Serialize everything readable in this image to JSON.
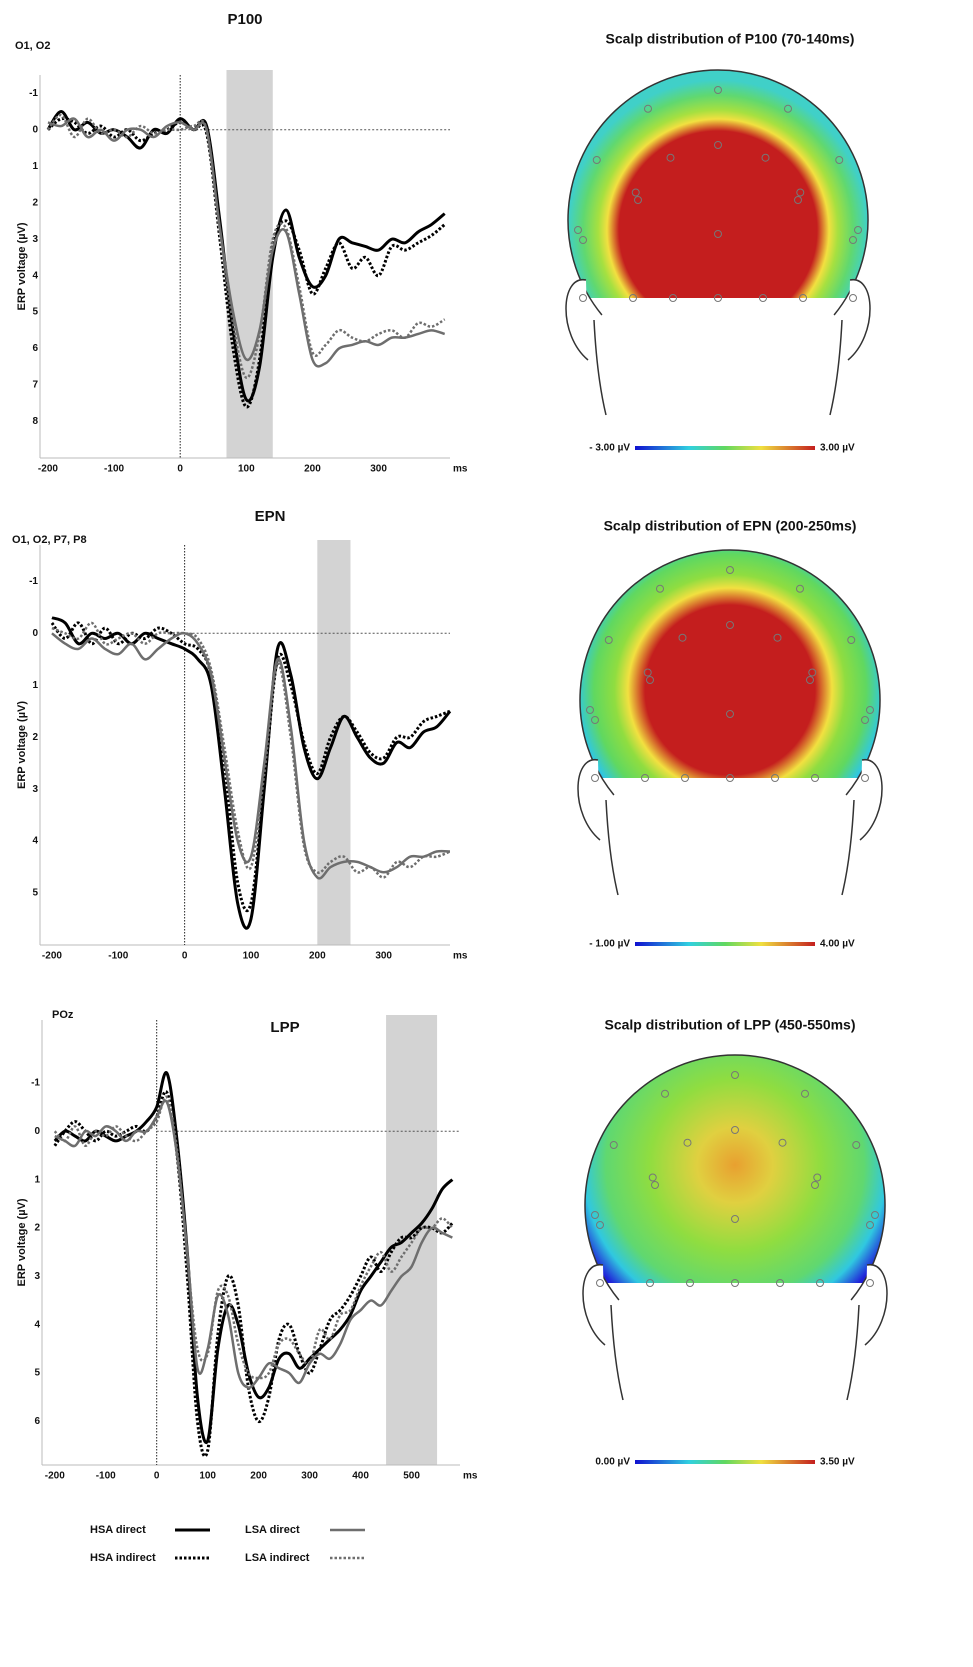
{
  "chart_data": [
    {
      "type": "line",
      "title": "P100",
      "channel": "O1, O2",
      "ylabel": "ERP voltage (µV)",
      "xunit": "ms",
      "invert_y": true,
      "xlim": [
        -212,
        408
      ],
      "xticks": [
        -200,
        -100,
        0,
        100,
        200,
        300
      ],
      "ylim": [
        -1.5,
        9
      ],
      "yticks": [
        -1,
        0,
        1,
        2,
        3,
        4,
        5,
        6,
        7,
        8
      ],
      "window": [
        70,
        140
      ],
      "x": [
        -200,
        -180,
        -160,
        -140,
        -120,
        -100,
        -80,
        -60,
        -40,
        -20,
        0,
        20,
        40,
        60,
        80,
        100,
        120,
        140,
        160,
        180,
        200,
        220,
        240,
        260,
        280,
        300,
        320,
        340,
        360,
        380,
        400
      ],
      "series": [
        {
          "name": "HSA direct",
          "color": "#000000",
          "line_style": "solid",
          "values": [
            0,
            -0.5,
            0,
            -0.2,
            0.1,
            0,
            0.2,
            0.5,
            0,
            0.1,
            -0.3,
            0,
            -0.1,
            2.5,
            5.5,
            7.4,
            6.5,
            3.5,
            2.2,
            3.5,
            4.3,
            4,
            3,
            3.1,
            3.2,
            3.3,
            3,
            3.1,
            2.8,
            2.6,
            2.3
          ]
        },
        {
          "name": "HSA indirect",
          "color": "#000000",
          "line_style": "dotted",
          "values": [
            0,
            -0.3,
            -0.2,
            0.1,
            -0.1,
            0.2,
            0,
            0.3,
            0.1,
            0,
            -0.2,
            0,
            0.1,
            3,
            6,
            7.6,
            6.3,
            3.2,
            2.5,
            3.3,
            4.5,
            3.8,
            3.1,
            3.8,
            3.5,
            4,
            3.2,
            3.3,
            3.1,
            2.9,
            2.6
          ]
        },
        {
          "name": "LSA direct",
          "color": "#6e6e6e",
          "line_style": "solid",
          "values": [
            -0.2,
            -0.1,
            -0.3,
            0.2,
            0,
            0.3,
            0,
            0,
            0.2,
            -0.1,
            -0.2,
            0,
            0,
            2.7,
            5,
            6.3,
            5.5,
            3.3,
            2.8,
            4.5,
            6.3,
            6.4,
            6,
            5.9,
            5.8,
            5.9,
            5.7,
            5.7,
            5.6,
            5.5,
            5.6
          ]
        },
        {
          "name": "LSA indirect",
          "color": "#6e6e6e",
          "line_style": "dotted",
          "values": [
            0,
            -0.4,
            0.2,
            -0.3,
            0.1,
            0,
            0.2,
            -0.1,
            0.1,
            0,
            0,
            -0.1,
            0,
            2.8,
            5.3,
            6.8,
            5.6,
            3,
            2.7,
            4.3,
            6.1,
            5.9,
            5.5,
            5.7,
            5.8,
            5.6,
            5.5,
            5.7,
            5.3,
            5.4,
            5.2
          ]
        }
      ]
    },
    {
      "type": "line",
      "title": "EPN",
      "channel": "O1, O2, P7, P8",
      "ylabel": "ERP voltage (µV)",
      "xunit": "ms",
      "invert_y": true,
      "xlim": [
        -218,
        400
      ],
      "xticks": [
        -200,
        -100,
        0,
        100,
        200,
        300
      ],
      "ylim": [
        -1.7,
        6
      ],
      "yticks": [
        -1,
        0,
        1,
        2,
        3,
        4,
        5
      ],
      "window": [
        200,
        250
      ],
      "x": [
        -200,
        -180,
        -160,
        -140,
        -120,
        -100,
        -80,
        -60,
        -40,
        -20,
        0,
        20,
        40,
        60,
        80,
        100,
        120,
        140,
        160,
        180,
        200,
        220,
        240,
        260,
        280,
        300,
        320,
        340,
        360,
        380,
        400
      ],
      "series": [
        {
          "name": "HSA direct",
          "color": "#000000",
          "line_style": "solid",
          "values": [
            -0.3,
            -0.2,
            0.2,
            0,
            0.1,
            0,
            0.2,
            0,
            0.1,
            0.2,
            0.3,
            0.5,
            1,
            3,
            5.2,
            5.5,
            3,
            0.3,
            0.8,
            2.2,
            2.8,
            2.2,
            1.6,
            2,
            2.4,
            2.5,
            2.1,
            2.2,
            1.9,
            1.8,
            1.5
          ]
        },
        {
          "name": "HSA indirect",
          "color": "#000000",
          "line_style": "dotted",
          "values": [
            -0.2,
            0.1,
            -0.2,
            0.2,
            -0.1,
            0.2,
            0,
            0.1,
            -0.1,
            0,
            0.2,
            0.3,
            0.8,
            2.5,
            4.8,
            5.2,
            2.9,
            0.5,
            1,
            2.1,
            2.7,
            2,
            1.6,
            1.9,
            2.3,
            2.4,
            2,
            2,
            1.7,
            1.6,
            1.5
          ]
        },
        {
          "name": "LSA direct",
          "color": "#6e6e6e",
          "line_style": "solid",
          "values": [
            0,
            0.2,
            0.3,
            0.1,
            0.3,
            0.4,
            0.2,
            0.5,
            0.3,
            0.1,
            0,
            0.2,
            0.8,
            2.4,
            4,
            4.3,
            2.5,
            0.5,
            1.8,
            4,
            4.7,
            4.5,
            4.4,
            4.4,
            4.5,
            4.6,
            4.5,
            4.3,
            4.3,
            4.2,
            4.2
          ]
        },
        {
          "name": "LSA indirect",
          "color": "#6e6e6e",
          "line_style": "dotted",
          "values": [
            -0.1,
            0,
            0.1,
            -0.2,
            0.2,
            0.1,
            0,
            0.2,
            0,
            0,
            0,
            0.1,
            0.7,
            2.2,
            3.8,
            4.5,
            2.7,
            0.6,
            2,
            4.1,
            4.6,
            4.4,
            4.3,
            4.6,
            4.5,
            4.7,
            4.4,
            4.5,
            4.3,
            4.3,
            4.2
          ]
        }
      ]
    },
    {
      "type": "line",
      "title": "LPP",
      "channel": "POz",
      "ylabel": "ERP voltage (µV)",
      "xunit": "ms",
      "invert_y": true,
      "xlim": [
        -225,
        595
      ],
      "xticks": [
        -200,
        -100,
        0,
        100,
        200,
        300,
        400,
        500
      ],
      "ylim": [
        -2.3,
        6.9
      ],
      "yticks": [
        -1,
        0,
        1,
        2,
        3,
        4,
        5,
        6
      ],
      "window": [
        450,
        550
      ],
      "x": [
        -200,
        -180,
        -160,
        -140,
        -120,
        -100,
        -80,
        -60,
        -40,
        -20,
        0,
        20,
        40,
        60,
        80,
        100,
        120,
        140,
        160,
        180,
        200,
        220,
        240,
        260,
        280,
        300,
        320,
        340,
        360,
        380,
        400,
        420,
        440,
        460,
        480,
        500,
        520,
        540,
        560,
        580
      ],
      "series": [
        {
          "name": "HSA direct",
          "color": "#000000",
          "line_style": "solid",
          "values": [
            0.2,
            0,
            0.1,
            0.2,
            0,
            0.1,
            0.2,
            0.1,
            0,
            -0.2,
            -0.5,
            -1.2,
            0.2,
            2.5,
            5.5,
            6.4,
            4.5,
            3.6,
            4,
            5,
            5.5,
            5.3,
            4.7,
            4.6,
            4.9,
            4.7,
            4.5,
            4.3,
            4.1,
            3.8,
            3.3,
            3,
            2.7,
            2.4,
            2.3,
            2.1,
            1.9,
            1.6,
            1.2,
            1
          ]
        },
        {
          "name": "HSA indirect",
          "color": "#000000",
          "line_style": "dotted",
          "values": [
            0.3,
            0,
            -0.2,
            0,
            0.2,
            0,
            0.1,
            0,
            -0.1,
            0,
            -0.3,
            -0.8,
            0.5,
            3,
            6,
            6.6,
            4.2,
            3,
            3.6,
            5.3,
            6,
            5.5,
            4.3,
            4,
            4.6,
            5,
            4.5,
            3.9,
            3.7,
            3.4,
            3,
            2.6,
            2.9,
            2.5,
            2.2,
            2.2,
            2,
            2,
            2.1,
            1.9
          ]
        },
        {
          "name": "LSA direct",
          "color": "#6e6e6e",
          "line_style": "solid",
          "values": [
            0.1,
            0.2,
            0.3,
            0,
            0.1,
            -0.1,
            0,
            0.2,
            0,
            0,
            -0.3,
            -0.6,
            0.5,
            2.5,
            4.9,
            4.5,
            3.4,
            3.8,
            5,
            5.3,
            5.1,
            4.8,
            4.9,
            5,
            5.2,
            4.8,
            4.6,
            4.7,
            4.4,
            3.9,
            3.7,
            3.5,
            3.6,
            3.3,
            3,
            2.8,
            2.3,
            2,
            2.1,
            2.2
          ]
        },
        {
          "name": "LSA indirect",
          "color": "#6e6e6e",
          "line_style": "dotted",
          "values": [
            0,
            0.2,
            -0.1,
            0.3,
            0,
            0.1,
            -0.1,
            0.1,
            0.2,
            0,
            -0.2,
            -0.7,
            0.4,
            2.6,
            4.5,
            4.6,
            3.3,
            3.4,
            4.4,
            5,
            5.1,
            5,
            4.4,
            4.3,
            4.6,
            4.8,
            4.1,
            4.3,
            3.8,
            3.7,
            3.2,
            2.8,
            2.5,
            2.9,
            2.6,
            2.3,
            2,
            2,
            1.8,
            2
          ]
        }
      ]
    }
  ],
  "scalp_maps": [
    {
      "title": "Scalp distribution of P100 (70-140ms)",
      "scale": [
        {
          "value": -3,
          "label": "- 3.00 µV"
        },
        {
          "value": 3,
          "label": "3.00 µV"
        }
      ]
    },
    {
      "title": "Scalp distribution of EPN (200-250ms)",
      "scale": [
        {
          "value": -1,
          "label": "- 1.00 µV"
        },
        {
          "value": 4,
          "label": "4.00 µV"
        }
      ]
    },
    {
      "title": "Scalp distribution of LPP (450-550ms)",
      "scale": [
        {
          "value": 0,
          "label": "0.00 µV"
        },
        {
          "value": 3.5,
          "label": "3.50 µV"
        }
      ]
    }
  ]
}
